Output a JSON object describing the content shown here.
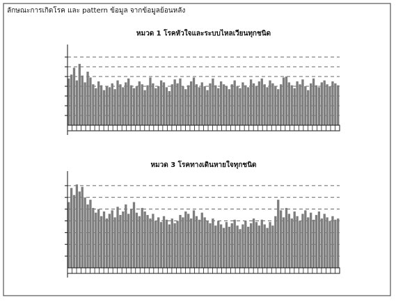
{
  "header": {
    "title": "ลักษณะการเกิดโรค และ pattern ข้อมูล จากข้อมูลย้อนหลัง"
  },
  "chart_data": [
    {
      "type": "bar",
      "title": "หมวด 1 โรคหัวใจและระบบไหลเวียนทุกชนิด",
      "color": "#7d7d7d",
      "grid": true,
      "ylim": [
        0,
        8
      ],
      "yticks": [
        1,
        2,
        3,
        4,
        5,
        6,
        7
      ],
      "values": [
        4.8,
        5.2,
        5.9,
        4.6,
        6.3,
        5.1,
        4.4,
        5.5,
        4.9,
        4.2,
        3.8,
        4.5,
        4.1,
        3.6,
        4.0,
        3.9,
        4.3,
        3.7,
        4.6,
        4.2,
        3.9,
        4.4,
        4.8,
        4.1,
        3.8,
        4.0,
        4.5,
        4.2,
        3.6,
        4.1,
        4.9,
        4.3,
        3.8,
        4.0,
        4.6,
        4.4,
        3.9,
        3.5,
        4.2,
        4.7,
        4.3,
        4.8,
        4.0,
        3.7,
        4.1,
        4.5,
        4.9,
        4.2,
        3.9,
        4.4,
        4.0,
        3.6,
        4.3,
        4.8,
        4.1,
        3.8,
        4.5,
        4.2,
        4.0,
        3.7,
        4.2,
        4.6,
        4.0,
        3.8,
        4.4,
        4.1,
        3.9,
        4.7,
        4.3,
        4.0,
        4.5,
        4.8,
        4.2,
        3.9,
        4.6,
        4.3,
        4.0,
        3.7,
        4.2,
        4.9,
        5.0,
        4.4,
        4.1,
        3.8,
        4.5,
        4.2,
        4.7,
        4.0,
        3.6,
        4.3,
        4.8,
        4.1,
        3.9,
        4.4,
        4.6,
        4.2,
        4.0,
        4.5,
        4.3,
        4.1
      ]
    },
    {
      "type": "bar",
      "title": "หมวด 3 โรคทางเดินหายใจทุกชนิด",
      "color": "#7d7d7d",
      "grid": true,
      "ylim": [
        0,
        8
      ],
      "yticks": [
        1,
        2,
        3,
        4,
        5,
        6,
        7
      ],
      "values": [
        5.6,
        6.8,
        6.2,
        7.1,
        6.5,
        6.9,
        6.0,
        5.4,
        5.8,
        5.1,
        4.7,
        5.0,
        4.4,
        4.8,
        4.2,
        4.6,
        4.9,
        4.3,
        5.2,
        4.5,
        4.8,
        5.4,
        4.6,
        5.0,
        5.6,
        4.7,
        4.4,
        5.1,
        4.8,
        4.5,
        4.2,
        4.6,
        4.0,
        4.3,
        3.9,
        4.4,
        4.1,
        3.7,
        4.2,
        3.8,
        4.0,
        4.5,
        4.3,
        4.8,
        4.6,
        4.2,
        4.9,
        4.4,
        4.1,
        4.7,
        4.3,
        4.0,
        3.8,
        4.2,
        3.6,
        4.0,
        3.7,
        3.4,
        3.9,
        3.5,
        3.8,
        4.1,
        3.6,
        3.3,
        3.7,
        4.0,
        3.5,
        3.8,
        4.2,
        3.9,
        3.6,
        4.1,
        3.7,
        3.4,
        3.9,
        3.6,
        4.4,
        5.8,
        4.9,
        4.3,
        5.1,
        4.6,
        4.2,
        4.8,
        4.4,
        4.0,
        4.6,
        4.9,
        4.3,
        4.7,
        4.1,
        4.5,
        4.8,
        4.2,
        4.6,
        4.3,
        4.0,
        4.4,
        4.1,
        4.2
      ]
    }
  ]
}
